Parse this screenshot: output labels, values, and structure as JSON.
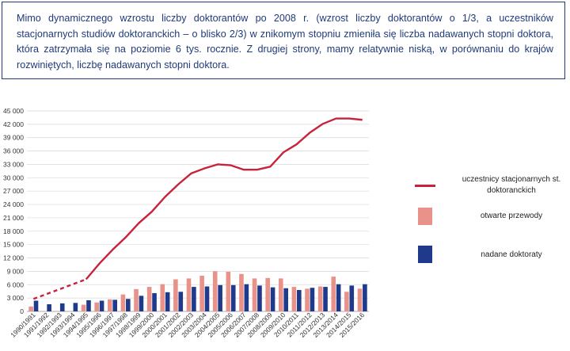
{
  "intro_text": "Mimo dynamicznego wzrostu liczby doktorantów po 2008 r. (wzrost liczby doktorantów o 1/3, a uczestników stacjonarnych studiów doktoranckich – o blisko 2/3) w znikomym stopniu zmieniła się liczba nadawanych stopni doktora, która zatrzymała się na poziomie 6 tys. rocznie. Z drugiej strony, mamy relatywnie niską, w porównaniu do krajów rozwiniętych, liczbę nadawanych stopni doktora.",
  "colors": {
    "line": "#c8233a",
    "opened": "#e8928a",
    "awarded": "#1f3a8a",
    "text_box": "#1f3a7a"
  },
  "legend": {
    "line_label": "uczestnicy stacjonarnych st. doktoranckich",
    "opened_label": "otwarte przewody",
    "awarded_label": "nadane doktoraty"
  },
  "chart_data": {
    "type": "bar",
    "title": "",
    "xlabel": "",
    "ylabel": "",
    "ylim": [
      0,
      45000
    ],
    "y_ticks": [
      "0",
      "3 000",
      "6 000",
      "9 000",
      "12 000",
      "15 000",
      "18 000",
      "21 000",
      "24 000",
      "27 000",
      "30 000",
      "33 000",
      "36 000",
      "39 000",
      "42 000",
      "45 000"
    ],
    "y_tick_values": [
      0,
      3000,
      6000,
      9000,
      12000,
      15000,
      18000,
      21000,
      24000,
      27000,
      30000,
      33000,
      36000,
      39000,
      42000,
      45000
    ],
    "categories": [
      "1990/1991",
      "1991/1992",
      "1992/1993",
      "1993/1994",
      "1994/1995",
      "1995/1996",
      "1996/1997",
      "1997/1998",
      "1998/1999",
      "1999/2000",
      "2000/2001",
      "2001/2002",
      "2002/2003",
      "2003/2004",
      "2004/2005",
      "2005/2006",
      "2006/2007",
      "2007/2008",
      "2008/2009",
      "2009/2010",
      "2010/2011",
      "2011/2012",
      "2012/2013",
      "2013/2014",
      "2014/2015",
      "2015/2016"
    ],
    "series": [
      {
        "name": "otwarte przewody",
        "kind": "bar",
        "values": [
          1100,
          null,
          null,
          null,
          1500,
          2000,
          2700,
          3800,
          5000,
          5500,
          6100,
          7200,
          7400,
          8000,
          9000,
          8900,
          8400,
          7400,
          7500,
          7400,
          5500,
          5100,
          5600,
          7800,
          4400,
          5100
        ]
      },
      {
        "name": "nadane doktoraty",
        "kind": "bar",
        "values": [
          2400,
          1600,
          1800,
          1900,
          2500,
          2400,
          2600,
          2800,
          3500,
          4100,
          4300,
          4400,
          5500,
          5600,
          5900,
          5900,
          6100,
          5800,
          5400,
          5200,
          4800,
          5300,
          5500,
          6100,
          5800,
          6100
        ]
      },
      {
        "name": "uczestnicy stacjonarnych st. doktoranckich",
        "kind": "line",
        "values": [
          2800,
          3900,
          5000,
          6100,
          7200,
          10700,
          13800,
          16600,
          19800,
          22400,
          25700,
          28500,
          31000,
          32100,
          33000,
          32800,
          31800,
          31800,
          32500,
          35700,
          37500,
          40100,
          42100,
          43300,
          43300,
          43000
        ],
        "dashed_until_index": 4
      }
    ]
  }
}
